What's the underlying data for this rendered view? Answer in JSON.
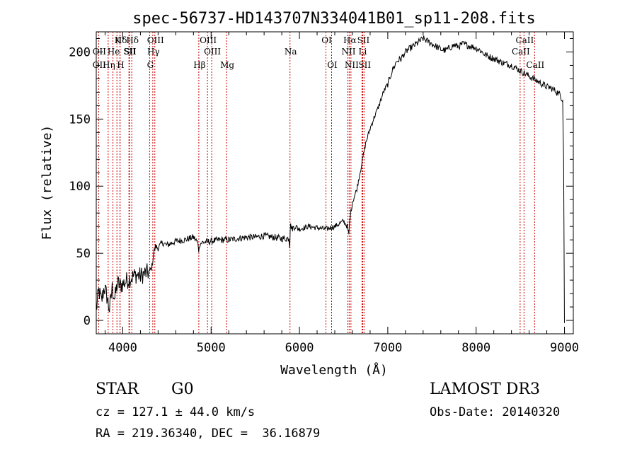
{
  "chart_data": {
    "type": "line",
    "title": "spec-56737-HD143707N334041B01_sp11-208.fits",
    "xlabel": "Wavelength (Å)",
    "ylabel": "Flux (relative)",
    "xlim": [
      3700,
      9100
    ],
    "ylim": [
      -10,
      215
    ],
    "xticks": [
      4000,
      5000,
      6000,
      7000,
      8000,
      9000
    ],
    "yticks": [
      0,
      50,
      100,
      150,
      200
    ],
    "grid": false,
    "line_color": "#000000",
    "marker_color": "#cc0000",
    "series": [
      {
        "name": "flux",
        "x": [
          3700,
          3730,
          3760,
          3790,
          3820,
          3850,
          3880,
          3910,
          3940,
          3970,
          4000,
          4050,
          4100,
          4150,
          4200,
          4250,
          4300,
          4330,
          4350,
          4370,
          4400,
          4450,
          4500,
          4600,
          4700,
          4800,
          4850,
          4860,
          4870,
          4900,
          5000,
          5100,
          5200,
          5300,
          5400,
          5500,
          5600,
          5700,
          5800,
          5880,
          5890,
          5895,
          5900,
          5910,
          5950,
          6000,
          6100,
          6200,
          6300,
          6400,
          6450,
          6500,
          6540,
          6560,
          6565,
          6575,
          6600,
          6650,
          6700,
          6750,
          6800,
          6850,
          6900,
          6950,
          7000,
          7050,
          7100,
          7150,
          7200,
          7300,
          7400,
          7450,
          7500,
          7550,
          7600,
          7650,
          7700,
          7750,
          7800,
          7850,
          7900,
          7950,
          8000,
          8050,
          8100,
          8200,
          8300,
          8400,
          8450,
          8500,
          8550,
          8600,
          8650,
          8700,
          8750,
          8800,
          8850,
          8900,
          8950,
          8980,
          8990,
          9000
        ],
        "y": [
          8,
          22,
          14,
          25,
          18,
          8,
          24,
          16,
          28,
          26,
          27,
          30,
          32,
          34,
          33,
          35,
          36,
          40,
          50,
          55,
          54,
          58,
          56,
          59,
          60,
          62,
          58,
          51,
          57,
          58,
          59,
          60,
          60,
          61,
          62,
          62,
          63,
          62,
          61,
          61,
          54,
          67,
          72,
          68,
          70,
          68,
          70,
          69,
          68,
          70,
          72,
          74,
          70,
          64,
          71,
          78,
          88,
          98,
          115,
          132,
          143,
          152,
          160,
          170,
          176,
          186,
          193,
          195,
          200,
          205,
          210,
          208,
          206,
          204,
          202,
          201,
          203,
          205,
          204,
          206,
          205,
          204,
          203,
          201,
          198,
          195,
          192,
          190,
          188,
          186,
          184,
          182,
          180,
          178,
          176,
          174,
          173,
          171,
          168,
          164,
          120,
          -2
        ]
      }
    ],
    "lines": [
      {
        "label": "Hδ",
        "x": 3970,
        "row": 1
      },
      {
        "label": "OII",
        "x": 3727,
        "row": 2
      },
      {
        "label": "OII",
        "x": 3727,
        "row": 3
      },
      {
        "label": "K",
        "x": 3934,
        "row": 1
      },
      {
        "label": "He",
        "x": 3889,
        "row": 2
      },
      {
        "label": "Hη",
        "x": 3835,
        "row": 3
      },
      {
        "label": "SII",
        "x": 4070,
        "row": 2
      },
      {
        "label": "H",
        "x": 3968,
        "row": 3
      },
      {
        "label": "Hδ",
        "x": 4102,
        "row": 1
      },
      {
        "label": "SII",
        "x": 4076,
        "row": 2
      },
      {
        "label": "OIII",
        "x": 4363,
        "row": 1
      },
      {
        "label": "Hγ",
        "x": 4340,
        "row": 2
      },
      {
        "label": "G",
        "x": 4304,
        "row": 3
      },
      {
        "label": "Hβ",
        "x": 4861,
        "row": 3
      },
      {
        "label": "OIII",
        "x": 4959,
        "row": 1
      },
      {
        "label": "OIII",
        "x": 5007,
        "row": 2
      },
      {
        "label": "Mg",
        "x": 5175,
        "row": 3
      },
      {
        "label": "Na",
        "x": 5893,
        "row": 2
      },
      {
        "label": "OI",
        "x": 6300,
        "row": 1
      },
      {
        "label": "OI",
        "x": 6364,
        "row": 3
      },
      {
        "label": "Hα",
        "x": 6563,
        "row": 1
      },
      {
        "label": "NII",
        "x": 6548,
        "row": 2
      },
      {
        "label": "NII",
        "x": 6583,
        "row": 3
      },
      {
        "label": "SII",
        "x": 6716,
        "row": 1
      },
      {
        "label": "Li",
        "x": 6708,
        "row": 2
      },
      {
        "label": "SII",
        "x": 6731,
        "row": 3
      },
      {
        "label": "CaII",
        "x": 8542,
        "row": 1
      },
      {
        "label": "CaII",
        "x": 8498,
        "row": 2
      },
      {
        "label": "CaII",
        "x": 8662,
        "row": 3
      }
    ]
  },
  "info": {
    "class_label": "STAR",
    "subclass": "G0",
    "survey": "LAMOST DR3",
    "cz_text": "cz = 127.1 ± 44.0 km/s",
    "obs_date_text": "Obs-Date: 20140320",
    "coords_text": "RA = 219.36340, DEC =  36.16879"
  }
}
